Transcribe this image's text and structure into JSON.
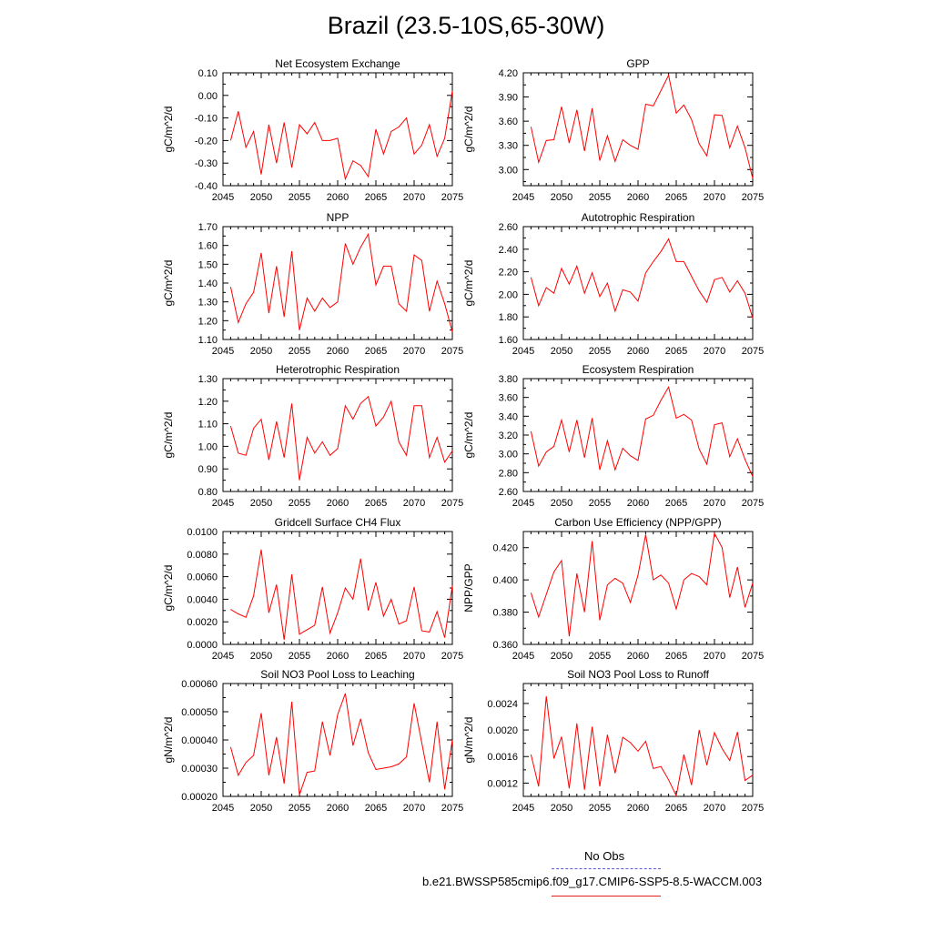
{
  "title": "Brazil (23.5-10S,65-30W)",
  "series_color": "#ff0000",
  "legend": {
    "obs_label": "No Obs",
    "model_label": "b.e21.BWSSP585cmip6.f09_g17.CMIP6-SSP5-8.5-WACCM.003",
    "obs_color": "#5a5ad6",
    "model_color": "#e02020"
  },
  "chart_data": [
    {
      "type": "line",
      "title": "Net Ecosystem Exchange",
      "ylabel": "gC/m^2/d",
      "xlabel": "",
      "xlim": [
        2045,
        2075
      ],
      "ylim": [
        -0.4,
        0.1
      ],
      "xticks": [
        2045,
        2050,
        2055,
        2060,
        2065,
        2070,
        2075
      ],
      "yticks": [
        "-0.40",
        "-0.30",
        "-0.20",
        "-0.10",
        "0.00",
        "0.10"
      ],
      "x": [
        2046,
        2047,
        2048,
        2049,
        2050,
        2051,
        2052,
        2053,
        2054,
        2055,
        2056,
        2057,
        2058,
        2059,
        2060,
        2061,
        2062,
        2063,
        2064,
        2065,
        2066,
        2067,
        2068,
        2069,
        2070,
        2071,
        2072,
        2073,
        2074,
        2075
      ],
      "series": [
        {
          "name": "b.e21.BWSSP585cmip6.f09_g17.CMIP6-SSP5-8.5-WACCM.003",
          "values": [
            -0.2,
            -0.07,
            -0.23,
            -0.16,
            -0.35,
            -0.13,
            -0.3,
            -0.12,
            -0.32,
            -0.13,
            -0.17,
            -0.12,
            -0.2,
            -0.2,
            -0.19,
            -0.37,
            -0.29,
            -0.31,
            -0.36,
            -0.15,
            -0.26,
            -0.16,
            -0.14,
            -0.1,
            -0.26,
            -0.22,
            -0.13,
            -0.27,
            -0.19,
            0.02
          ]
        }
      ]
    },
    {
      "type": "line",
      "title": "GPP",
      "ylabel": "gC/m^2/d",
      "xlabel": "",
      "xlim": [
        2045,
        2075
      ],
      "ylim": [
        2.8,
        4.2
      ],
      "xticks": [
        2045,
        2050,
        2055,
        2060,
        2065,
        2070,
        2075
      ],
      "yticks": [
        "3.00",
        "3.30",
        "3.60",
        "3.90",
        "4.20"
      ],
      "x": [
        2046,
        2047,
        2048,
        2049,
        2050,
        2051,
        2052,
        2053,
        2054,
        2055,
        2056,
        2057,
        2058,
        2059,
        2060,
        2061,
        2062,
        2063,
        2064,
        2065,
        2066,
        2067,
        2068,
        2069,
        2070,
        2071,
        2072,
        2073,
        2074,
        2075
      ],
      "series": [
        {
          "name": "b.e21.BWSSP585cmip6.f09_g17.CMIP6-SSP5-8.5-WACCM.003",
          "values": [
            3.53,
            3.09,
            3.36,
            3.37,
            3.78,
            3.33,
            3.74,
            3.23,
            3.76,
            3.11,
            3.42,
            3.1,
            3.37,
            3.3,
            3.25,
            3.81,
            3.79,
            3.98,
            4.17,
            3.7,
            3.8,
            3.62,
            3.32,
            3.17,
            3.68,
            3.67,
            3.27,
            3.54,
            3.27,
            2.89
          ]
        }
      ]
    },
    {
      "type": "line",
      "title": "NPP",
      "ylabel": "gC/m^2/d",
      "xlabel": "",
      "xlim": [
        2045,
        2075
      ],
      "ylim": [
        1.1,
        1.7
      ],
      "xticks": [
        2045,
        2050,
        2055,
        2060,
        2065,
        2070,
        2075
      ],
      "yticks": [
        "1.10",
        "1.20",
        "1.30",
        "1.40",
        "1.50",
        "1.60",
        "1.70"
      ],
      "x": [
        2046,
        2047,
        2048,
        2049,
        2050,
        2051,
        2052,
        2053,
        2054,
        2055,
        2056,
        2057,
        2058,
        2059,
        2060,
        2061,
        2062,
        2063,
        2064,
        2065,
        2066,
        2067,
        2068,
        2069,
        2070,
        2071,
        2072,
        2073,
        2074,
        2075
      ],
      "series": [
        {
          "name": "b.e21.BWSSP585cmip6.f09_g17.CMIP6-SSP5-8.5-WACCM.003",
          "values": [
            1.38,
            1.19,
            1.29,
            1.35,
            1.56,
            1.24,
            1.49,
            1.22,
            1.57,
            1.15,
            1.32,
            1.25,
            1.32,
            1.27,
            1.3,
            1.61,
            1.5,
            1.59,
            1.66,
            1.39,
            1.49,
            1.49,
            1.29,
            1.25,
            1.55,
            1.52,
            1.25,
            1.41,
            1.29,
            1.14
          ]
        }
      ]
    },
    {
      "type": "line",
      "title": "Autotrophic Respiration",
      "ylabel": "gC/m^2/d",
      "xlabel": "",
      "xlim": [
        2045,
        2075
      ],
      "ylim": [
        1.6,
        2.6
      ],
      "xticks": [
        2045,
        2050,
        2055,
        2060,
        2065,
        2070,
        2075
      ],
      "yticks": [
        "1.60",
        "1.80",
        "2.00",
        "2.20",
        "2.40",
        "2.60"
      ],
      "x": [
        2046,
        2047,
        2048,
        2049,
        2050,
        2051,
        2052,
        2053,
        2054,
        2055,
        2056,
        2057,
        2058,
        2059,
        2060,
        2061,
        2062,
        2063,
        2064,
        2065,
        2066,
        2067,
        2068,
        2069,
        2070,
        2071,
        2072,
        2073,
        2074,
        2075
      ],
      "series": [
        {
          "name": "b.e21.BWSSP585cmip6.f09_g17.CMIP6-SSP5-8.5-WACCM.003",
          "values": [
            2.15,
            1.9,
            2.06,
            2.01,
            2.23,
            2.09,
            2.25,
            2.01,
            2.19,
            1.98,
            2.1,
            1.85,
            2.04,
            2.02,
            1.94,
            2.19,
            2.29,
            2.38,
            2.49,
            2.29,
            2.29,
            2.16,
            2.03,
            1.93,
            2.13,
            2.15,
            2.02,
            2.12,
            2.01,
            1.79
          ]
        }
      ]
    },
    {
      "type": "line",
      "title": "Heterotrophic Respiration",
      "ylabel": "gC/m^2/d",
      "xlabel": "",
      "xlim": [
        2045,
        2075
      ],
      "ylim": [
        0.8,
        1.3
      ],
      "xticks": [
        2045,
        2050,
        2055,
        2060,
        2065,
        2070,
        2075
      ],
      "yticks": [
        "0.80",
        "0.90",
        "1.00",
        "1.10",
        "1.20",
        "1.30"
      ],
      "x": [
        2046,
        2047,
        2048,
        2049,
        2050,
        2051,
        2052,
        2053,
        2054,
        2055,
        2056,
        2057,
        2058,
        2059,
        2060,
        2061,
        2062,
        2063,
        2064,
        2065,
        2066,
        2067,
        2068,
        2069,
        2070,
        2071,
        2072,
        2073,
        2074,
        2075
      ],
      "series": [
        {
          "name": "b.e21.BWSSP585cmip6.f09_g17.CMIP6-SSP5-8.5-WACCM.003",
          "values": [
            1.09,
            0.97,
            0.96,
            1.08,
            1.12,
            0.94,
            1.11,
            0.95,
            1.19,
            0.85,
            1.04,
            0.97,
            1.02,
            0.96,
            0.99,
            1.18,
            1.12,
            1.19,
            1.22,
            1.09,
            1.13,
            1.2,
            1.02,
            0.96,
            1.18,
            1.18,
            0.95,
            1.04,
            0.93,
            0.98
          ]
        }
      ]
    },
    {
      "type": "line",
      "title": "Ecosystem Respiration",
      "ylabel": "gC/m^2/d",
      "xlabel": "",
      "xlim": [
        2045,
        2075
      ],
      "ylim": [
        2.6,
        3.8
      ],
      "xticks": [
        2045,
        2050,
        2055,
        2060,
        2065,
        2070,
        2075
      ],
      "yticks": [
        "2.60",
        "2.80",
        "3.00",
        "3.20",
        "3.40",
        "3.60",
        "3.80"
      ],
      "x": [
        2046,
        2047,
        2048,
        2049,
        2050,
        2051,
        2052,
        2053,
        2054,
        2055,
        2056,
        2057,
        2058,
        2059,
        2060,
        2061,
        2062,
        2063,
        2064,
        2065,
        2066,
        2067,
        2068,
        2069,
        2070,
        2071,
        2072,
        2073,
        2074,
        2075
      ],
      "series": [
        {
          "name": "b.e21.BWSSP585cmip6.f09_g17.CMIP6-SSP5-8.5-WACCM.003",
          "values": [
            3.24,
            2.87,
            3.02,
            3.08,
            3.36,
            3.02,
            3.36,
            2.96,
            3.38,
            2.83,
            3.14,
            2.83,
            3.06,
            2.98,
            2.93,
            3.37,
            3.41,
            3.57,
            3.71,
            3.38,
            3.42,
            3.36,
            3.05,
            2.89,
            3.31,
            3.33,
            2.97,
            3.16,
            2.94,
            2.76
          ]
        }
      ]
    },
    {
      "type": "line",
      "title": "Gridcell Surface CH4 Flux",
      "ylabel": "gC/m^2/d",
      "xlabel": "",
      "xlim": [
        2045,
        2075
      ],
      "ylim": [
        0.0,
        0.01
      ],
      "xticks": [
        2045,
        2050,
        2055,
        2060,
        2065,
        2070,
        2075
      ],
      "yticks": [
        "0.0000",
        "0.0020",
        "0.0040",
        "0.0060",
        "0.0080",
        "0.0100"
      ],
      "x": [
        2046,
        2047,
        2048,
        2049,
        2050,
        2051,
        2052,
        2053,
        2054,
        2055,
        2056,
        2057,
        2058,
        2059,
        2060,
        2061,
        2062,
        2063,
        2064,
        2065,
        2066,
        2067,
        2068,
        2069,
        2070,
        2071,
        2072,
        2073,
        2074,
        2075
      ],
      "series": [
        {
          "name": "b.e21.BWSSP585cmip6.f09_g17.CMIP6-SSP5-8.5-WACCM.003",
          "values": [
            0.0031,
            0.0027,
            0.0024,
            0.0043,
            0.0084,
            0.0028,
            0.0053,
            0.0004,
            0.0062,
            0.0009,
            0.0013,
            0.0017,
            0.0051,
            0.001,
            0.0028,
            0.005,
            0.004,
            0.0076,
            0.003,
            0.0055,
            0.0025,
            0.004,
            0.0018,
            0.0021,
            0.0051,
            0.0012,
            0.0011,
            0.0029,
            0.0006,
            0.0052
          ]
        }
      ]
    },
    {
      "type": "line",
      "title": "Carbon Use Efficiency (NPP/GPP)",
      "ylabel": "NPP/GPP",
      "xlabel": "",
      "xlim": [
        2045,
        2075
      ],
      "ylim": [
        0.36,
        0.43
      ],
      "xticks": [
        2045,
        2050,
        2055,
        2060,
        2065,
        2070,
        2075
      ],
      "yticks": [
        "0.360",
        "0.380",
        "0.400",
        "0.420"
      ],
      "x": [
        2046,
        2047,
        2048,
        2049,
        2050,
        2051,
        2052,
        2053,
        2054,
        2055,
        2056,
        2057,
        2058,
        2059,
        2060,
        2061,
        2062,
        2063,
        2064,
        2065,
        2066,
        2067,
        2068,
        2069,
        2070,
        2071,
        2072,
        2073,
        2074,
        2075
      ],
      "series": [
        {
          "name": "b.e21.BWSSP585cmip6.f09_g17.CMIP6-SSP5-8.5-WACCM.003",
          "values": [
            0.392,
            0.377,
            0.391,
            0.405,
            0.412,
            0.365,
            0.404,
            0.38,
            0.424,
            0.375,
            0.397,
            0.401,
            0.398,
            0.386,
            0.403,
            0.428,
            0.4,
            0.403,
            0.398,
            0.382,
            0.4,
            0.404,
            0.402,
            0.397,
            0.429,
            0.42,
            0.389,
            0.408,
            0.383,
            0.398
          ]
        }
      ]
    },
    {
      "type": "line",
      "title": "Soil NO3 Pool Loss to Leaching",
      "ylabel": "gN/m^2/d",
      "xlabel": "",
      "xlim": [
        2045,
        2075
      ],
      "ylim": [
        0.0002,
        0.0006
      ],
      "xticks": [
        2045,
        2050,
        2055,
        2060,
        2065,
        2070,
        2075
      ],
      "yticks": [
        "0.00020",
        "0.00030",
        "0.00040",
        "0.00050",
        "0.00060"
      ],
      "x": [
        2046,
        2047,
        2048,
        2049,
        2050,
        2051,
        2052,
        2053,
        2054,
        2055,
        2056,
        2057,
        2058,
        2059,
        2060,
        2061,
        2062,
        2063,
        2064,
        2065,
        2066,
        2067,
        2068,
        2069,
        2070,
        2071,
        2072,
        2073,
        2074,
        2075
      ],
      "series": [
        {
          "name": "b.e21.BWSSP585cmip6.f09_g17.CMIP6-SSP5-8.5-WACCM.003",
          "values": [
            0.000375,
            0.000275,
            0.00032,
            0.000345,
            0.000495,
            0.000275,
            0.00041,
            0.000245,
            0.000535,
            0.000205,
            0.000285,
            0.00029,
            0.000465,
            0.000345,
            0.00049,
            0.000565,
            0.00038,
            0.000475,
            0.000355,
            0.000295,
            0.0003,
            0.000305,
            0.000315,
            0.00034,
            0.00053,
            0.00039,
            0.00025,
            0.000465,
            0.000225,
            0.0004
          ]
        }
      ]
    },
    {
      "type": "line",
      "title": "Soil NO3 Pool Loss to Runoff",
      "ylabel": "gN/m^2/d",
      "xlabel": "",
      "xlim": [
        2045,
        2075
      ],
      "ylim": [
        0.001,
        0.0027
      ],
      "xticks": [
        2045,
        2050,
        2055,
        2060,
        2065,
        2070,
        2075
      ],
      "yticks": [
        "0.0012",
        "0.0016",
        "0.0020",
        "0.0024"
      ],
      "x": [
        2046,
        2047,
        2048,
        2049,
        2050,
        2051,
        2052,
        2053,
        2054,
        2055,
        2056,
        2057,
        2058,
        2059,
        2060,
        2061,
        2062,
        2063,
        2064,
        2065,
        2066,
        2067,
        2068,
        2069,
        2070,
        2071,
        2072,
        2073,
        2074,
        2075
      ],
      "series": [
        {
          "name": "b.e21.BWSSP585cmip6.f09_g17.CMIP6-SSP5-8.5-WACCM.003",
          "values": [
            0.00163,
            0.00115,
            0.00251,
            0.00157,
            0.0019,
            0.00112,
            0.0021,
            0.0011,
            0.00205,
            0.00115,
            0.00193,
            0.00135,
            0.00189,
            0.00181,
            0.00168,
            0.00183,
            0.00142,
            0.00145,
            0.00125,
            0.00101,
            0.00163,
            0.00117,
            0.002,
            0.00147,
            0.00196,
            0.00172,
            0.00154,
            0.00197,
            0.00124,
            0.00132
          ]
        }
      ]
    }
  ]
}
